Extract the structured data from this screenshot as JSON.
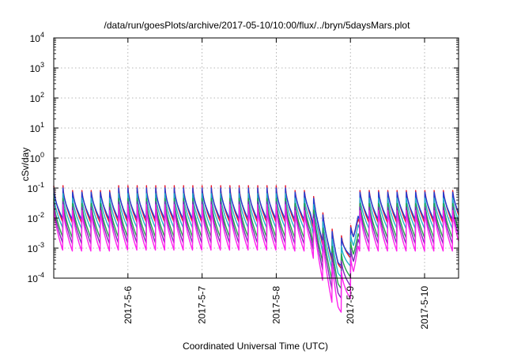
{
  "chart_data": {
    "type": "line",
    "title": "/data/run/goesPlots/archive/2017-05-10/10:00/flux/../bryn/5daysMars.plot",
    "xlabel": "Coordinated Universal Time (UTC)",
    "ylabel": "cSv/day",
    "y_scale": "log",
    "ylim": [
      0.0001,
      10000
    ],
    "x_range": [
      "2017-05-05T00:00",
      "2017-05-10T11:00"
    ],
    "grid": true,
    "legend": "none",
    "x_ticks": [
      "2017-5-6",
      "2017-5-7",
      "2017-5-8",
      "2017-5-9",
      "2017-5-10"
    ],
    "y_ticks": [
      {
        "base": "10",
        "exp": "-4"
      },
      {
        "base": "10",
        "exp": "-3"
      },
      {
        "base": "10",
        "exp": "-2"
      },
      {
        "base": "10",
        "exp": "-1"
      },
      {
        "base": "10",
        "exp": "0"
      },
      {
        "base": "10",
        "exp": "1"
      },
      {
        "base": "10",
        "exp": "2"
      },
      {
        "base": "10",
        "exp": "3"
      },
      {
        "base": "10",
        "exp": "4"
      }
    ],
    "sawtooth_period_hours": 3,
    "dip": {
      "start": "2017-05-08T11:00",
      "min": "2017-05-08T20:00",
      "end": "2017-05-09T01:00"
    },
    "series": [
      {
        "color": "#e8192c",
        "peak": 0.12,
        "trough": 0.007,
        "dip_min": 0.0028
      },
      {
        "color": "#1f3fd6",
        "peak": 0.1,
        "trough": 0.009,
        "dip_min": 0.0022
      },
      {
        "color": "#23b3c9",
        "peak": 0.065,
        "trough": 0.0045,
        "dip_min": 0.0012
      },
      {
        "color": "#22a645",
        "peak": 0.045,
        "trough": 0.0022,
        "dip_min": 0.0007
      },
      {
        "color": "#7a2bb5",
        "peak": 0.035,
        "trough": 0.0014,
        "dip_min": 0.0004
      },
      {
        "color": "#ff22ee",
        "peak": 0.028,
        "trough": 0.0008,
        "dip_min": 0.00018
      }
    ]
  }
}
